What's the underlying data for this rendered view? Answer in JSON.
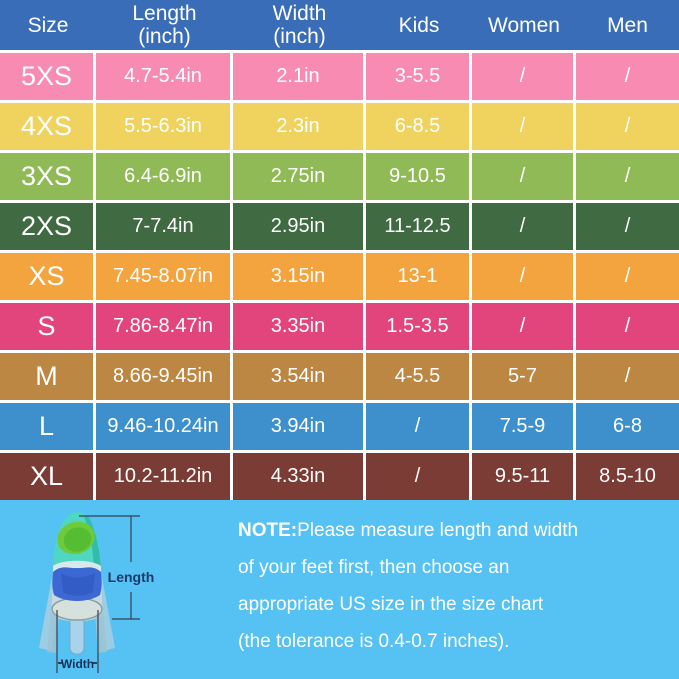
{
  "chart_data": {
    "type": "table",
    "columns": [
      "Size",
      "Length (inch)",
      "Width (inch)",
      "Kids",
      "Women",
      "Men"
    ],
    "columns_display": [
      "Size",
      "Length\n(inch)",
      "Width\n(inch)",
      "Kids",
      "Women",
      "Men"
    ],
    "rows": [
      [
        "5XS",
        "4.7-5.4in",
        "2.1in",
        "3-5.5",
        "/",
        "/"
      ],
      [
        "4XS",
        "5.5-6.3in",
        "2.3in",
        "6-8.5",
        "/",
        "/"
      ],
      [
        "3XS",
        "6.4-6.9in",
        "2.75in",
        "9-10.5",
        "/",
        "/"
      ],
      [
        "2XS",
        "7-7.4in",
        "2.95in",
        "11-12.5",
        "/",
        "/"
      ],
      [
        "XS",
        "7.45-8.07in",
        "3.15in",
        "13-1",
        "/",
        "/"
      ],
      [
        "S",
        "7.86-8.47in",
        "3.35in",
        "1.5-3.5",
        "/",
        "/"
      ],
      [
        "M",
        "8.66-9.45in",
        "3.54in",
        "4-5.5",
        "5-7",
        "/"
      ],
      [
        "L",
        "9.46-10.24in",
        "3.94in",
        "/",
        "7.5-9",
        "6-8"
      ],
      [
        "XL",
        "10.2-11.2in",
        "4.33in",
        "/",
        "9.5-11",
        "8.5-10"
      ]
    ],
    "row_colors": [
      "#f78bb1",
      "#f0d35e",
      "#90ba55",
      "#3f6a42",
      "#f3a43e",
      "#e2457c",
      "#bc8643",
      "#3e90cd",
      "#7c3c36"
    ],
    "legend_position": "none",
    "grid": "white 3px separators"
  },
  "colors": {
    "header_bg": "#3a6db7",
    "bottom_bg": "#56c1f3",
    "table_text": "#ffffff",
    "note_text": "#ffffff",
    "annotation": "#33414f",
    "annotation_label": "#1e3a6c"
  },
  "note": {
    "label": "NOTE:",
    "text": "Please measure length and width\nof your feet first, then choose an\nappropriate US size in the size chart\n(the tolerance is 0.4-0.7 inches)."
  },
  "fin": {
    "length_label": "Length",
    "width_label": "Width"
  }
}
